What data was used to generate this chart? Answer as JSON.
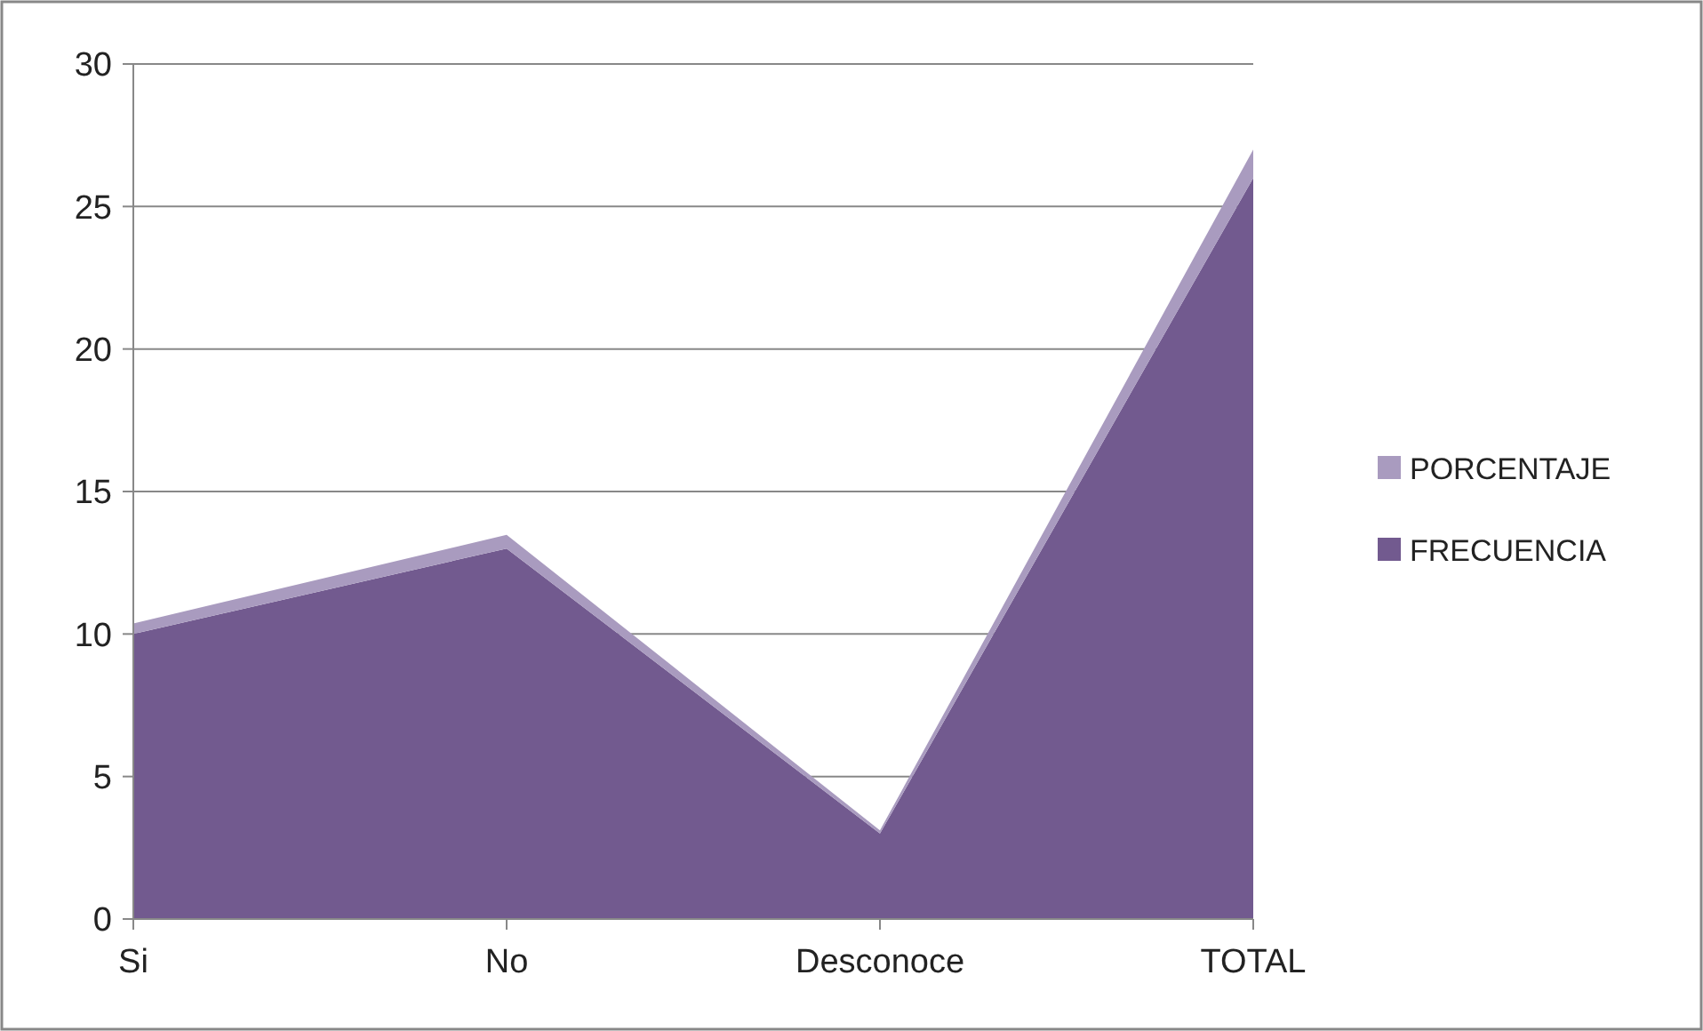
{
  "chart_data": {
    "type": "area",
    "stacked": true,
    "categories": [
      "Si",
      "No",
      "Desconoce",
      "TOTAL"
    ],
    "series": [
      {
        "name": "FRECUENCIA",
        "color": "#725a8f",
        "values": [
          10,
          13,
          3,
          26
        ]
      },
      {
        "name": "PORCENTAJE",
        "color": "#a99bbf",
        "values": [
          0.37,
          0.48,
          0.11,
          1
        ]
      }
    ],
    "ylim": [
      0,
      30
    ],
    "yticks": [
      0,
      5,
      10,
      15,
      20,
      25,
      30
    ],
    "grid": "y",
    "legend": "right"
  }
}
